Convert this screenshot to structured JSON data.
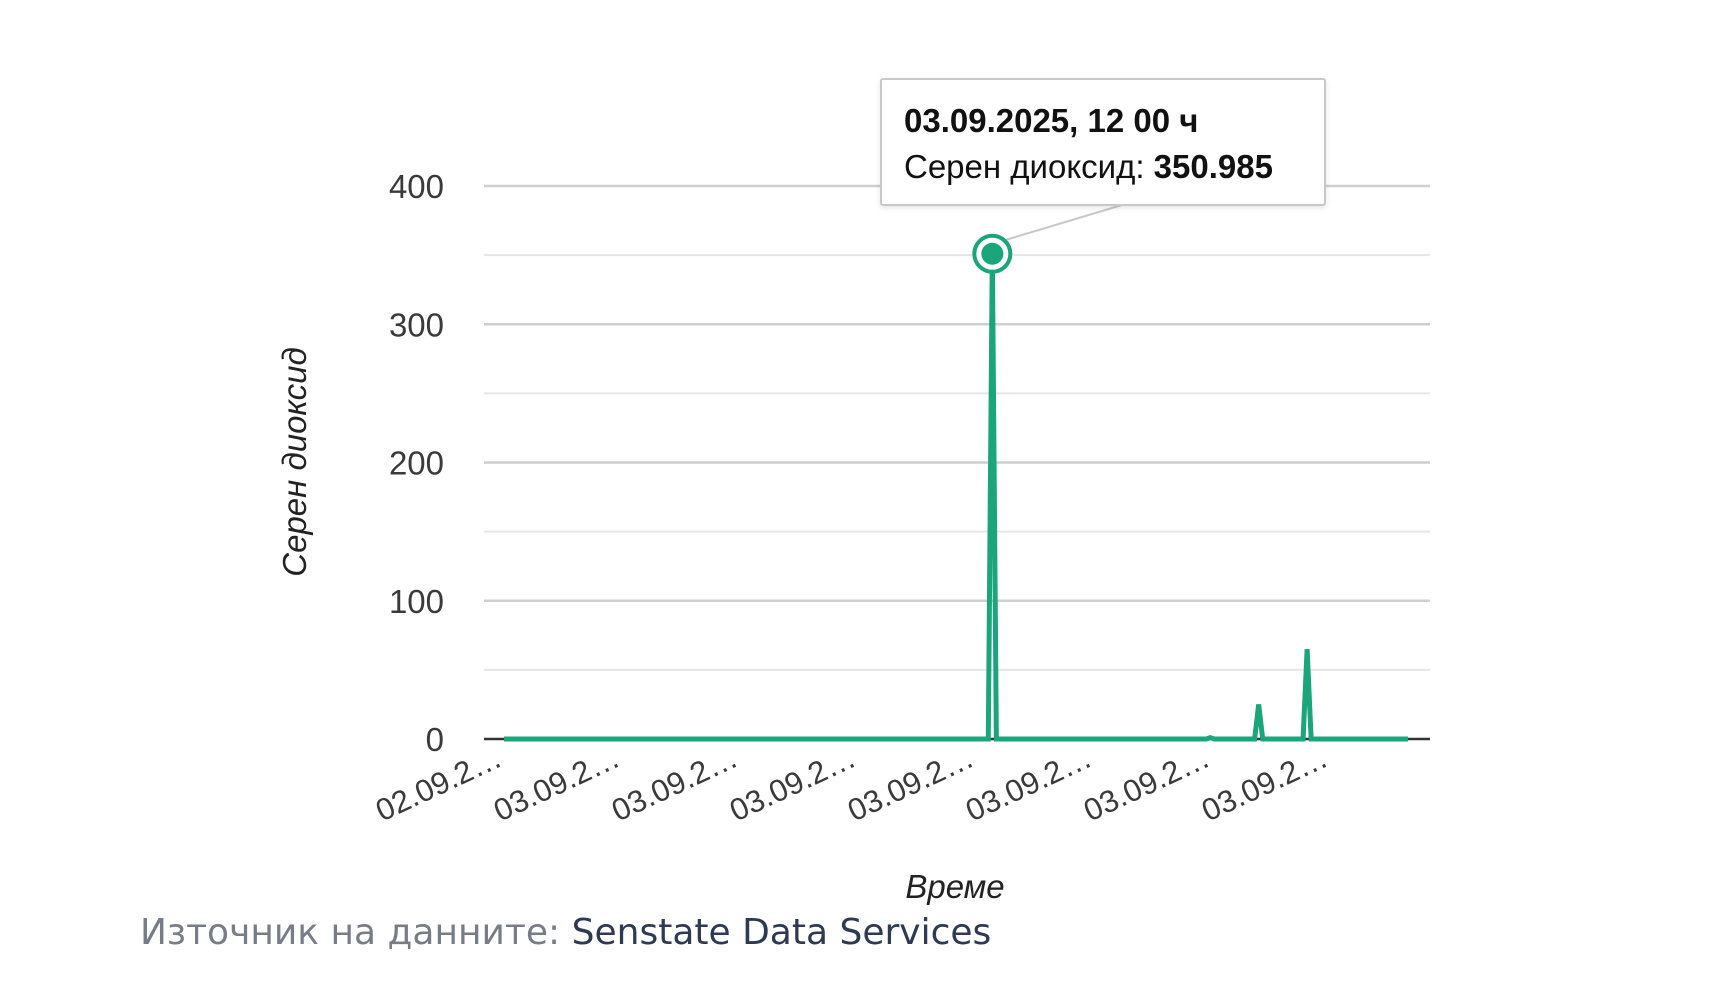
{
  "chart_data": {
    "type": "line",
    "title": "",
    "xlabel": "Време",
    "ylabel": "Серен диоксид",
    "ylim": [
      0,
      400
    ],
    "y_ticks": [
      0,
      100,
      200,
      300,
      400
    ],
    "grid": true,
    "x_tick_labels": [
      "02.09.2…",
      "03.09.2…",
      "03.09.2…",
      "03.09.2…",
      "03.09.2…",
      "03.09.2…",
      "03.09.2…",
      "03.09.2…"
    ],
    "series": [
      {
        "color": "#1aa57a",
        "values": [
          0,
          0,
          0,
          0,
          0,
          0,
          0,
          0,
          0,
          0,
          0,
          0,
          0,
          0,
          0,
          0,
          0,
          0,
          0,
          0,
          0,
          0,
          0,
          0,
          0,
          0,
          0,
          0,
          0,
          0,
          0,
          0,
          0,
          0,
          0,
          0,
          0,
          0,
          0,
          0,
          0,
          0,
          0,
          0,
          0,
          0,
          0,
          0,
          0,
          0,
          0,
          0,
          0,
          0,
          0,
          0,
          0,
          0,
          0,
          0,
          0,
          0,
          0,
          0,
          0,
          0,
          0,
          0,
          0,
          0,
          0,
          0,
          0,
          0,
          0,
          0,
          0,
          0,
          0,
          0,
          0,
          0,
          0,
          0,
          0,
          0,
          0,
          0,
          0,
          0,
          0,
          0,
          0,
          0,
          0,
          0,
          0,
          0,
          0,
          0,
          0,
          0,
          0,
          0,
          0,
          0,
          0,
          0,
          0,
          0,
          0,
          0,
          0,
          0,
          0,
          0,
          0,
          0,
          0,
          0,
          0,
          350.985,
          0,
          0,
          0,
          0,
          0,
          0,
          0,
          0,
          0,
          0,
          0,
          0,
          0,
          0,
          0,
          0,
          0,
          0,
          0,
          0,
          0,
          0,
          0,
          0,
          0,
          0,
          0,
          0,
          0,
          0,
          0,
          0,
          0,
          0,
          0,
          0,
          0,
          0,
          0,
          0,
          0,
          0,
          0,
          0,
          0,
          0,
          0,
          0,
          0,
          0,
          0,
          0,
          0,
          1,
          0,
          0,
          0,
          0,
          0,
          0,
          0,
          0,
          0,
          0,
          0,
          25,
          0,
          0,
          0,
          0,
          0,
          0,
          0,
          0,
          0,
          0,
          0,
          65,
          0,
          0,
          0,
          0,
          0,
          0,
          0,
          0,
          0,
          0,
          0,
          0,
          0,
          0,
          0,
          0,
          0,
          0,
          0,
          0,
          0,
          0,
          0,
          0,
          0
        ]
      }
    ],
    "tooltip": {
      "title": "03.09.2025, 12 00 ч",
      "series_label": "Серен диоксид:",
      "value": "350.985"
    }
  },
  "source": {
    "label": "Източник на данните:",
    "name": "Senstate Data Services"
  }
}
